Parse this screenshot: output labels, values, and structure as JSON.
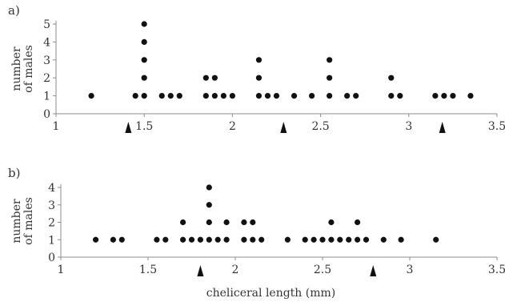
{
  "chart_data": [
    {
      "type": "scatter",
      "panel_label": "a)",
      "ylabel": [
        "number",
        "of males"
      ],
      "xlabel": "",
      "xlim": [
        1,
        3.5
      ],
      "ylim": [
        0,
        5
      ],
      "x_ticks": [
        "1",
        "1.5",
        "2",
        "2.5",
        "3",
        "3.5"
      ],
      "y_ticks": [
        "0",
        "1",
        "2",
        "3",
        "4",
        "5"
      ],
      "grid": false,
      "points": [
        {
          "x": 1.2,
          "y": 1
        },
        {
          "x": 1.45,
          "y": 1
        },
        {
          "x": 1.5,
          "y": 1
        },
        {
          "x": 1.5,
          "y": 2
        },
        {
          "x": 1.5,
          "y": 3
        },
        {
          "x": 1.5,
          "y": 4
        },
        {
          "x": 1.5,
          "y": 5
        },
        {
          "x": 1.6,
          "y": 1
        },
        {
          "x": 1.65,
          "y": 1
        },
        {
          "x": 1.7,
          "y": 1
        },
        {
          "x": 1.85,
          "y": 1
        },
        {
          "x": 1.85,
          "y": 2
        },
        {
          "x": 1.9,
          "y": 1
        },
        {
          "x": 1.9,
          "y": 2
        },
        {
          "x": 1.95,
          "y": 1
        },
        {
          "x": 2.0,
          "y": 1
        },
        {
          "x": 2.15,
          "y": 1
        },
        {
          "x": 2.15,
          "y": 2
        },
        {
          "x": 2.15,
          "y": 3
        },
        {
          "x": 2.2,
          "y": 1
        },
        {
          "x": 2.25,
          "y": 1
        },
        {
          "x": 2.35,
          "y": 1
        },
        {
          "x": 2.45,
          "y": 1
        },
        {
          "x": 2.55,
          "y": 1
        },
        {
          "x": 2.55,
          "y": 2
        },
        {
          "x": 2.55,
          "y": 3
        },
        {
          "x": 2.65,
          "y": 1
        },
        {
          "x": 2.7,
          "y": 1
        },
        {
          "x": 2.9,
          "y": 1
        },
        {
          "x": 2.9,
          "y": 2
        },
        {
          "x": 2.95,
          "y": 1
        },
        {
          "x": 3.15,
          "y": 1
        },
        {
          "x": 3.2,
          "y": 1
        },
        {
          "x": 3.25,
          "y": 1
        },
        {
          "x": 3.35,
          "y": 1
        }
      ],
      "markers": [
        1.41,
        2.29,
        3.19
      ]
    },
    {
      "type": "scatter",
      "panel_label": "b)",
      "ylabel": [
        "number",
        "of males"
      ],
      "xlabel": "cheliceral length (mm)",
      "xlim": [
        1,
        3.5
      ],
      "ylim": [
        0,
        4
      ],
      "x_ticks": [
        "1",
        "1.5",
        "2",
        "2.5",
        "3",
        "3.5"
      ],
      "y_ticks": [
        "0",
        "1",
        "2",
        "3",
        "4"
      ],
      "grid": false,
      "points": [
        {
          "x": 1.2,
          "y": 1
        },
        {
          "x": 1.3,
          "y": 1
        },
        {
          "x": 1.35,
          "y": 1
        },
        {
          "x": 1.55,
          "y": 1
        },
        {
          "x": 1.6,
          "y": 1
        },
        {
          "x": 1.7,
          "y": 1
        },
        {
          "x": 1.7,
          "y": 2
        },
        {
          "x": 1.75,
          "y": 1
        },
        {
          "x": 1.8,
          "y": 1
        },
        {
          "x": 1.85,
          "y": 1
        },
        {
          "x": 1.85,
          "y": 2
        },
        {
          "x": 1.85,
          "y": 3
        },
        {
          "x": 1.85,
          "y": 4
        },
        {
          "x": 1.9,
          "y": 1
        },
        {
          "x": 1.95,
          "y": 1
        },
        {
          "x": 1.95,
          "y": 2
        },
        {
          "x": 2.05,
          "y": 1
        },
        {
          "x": 2.05,
          "y": 2
        },
        {
          "x": 2.1,
          "y": 1
        },
        {
          "x": 2.1,
          "y": 2
        },
        {
          "x": 2.15,
          "y": 1
        },
        {
          "x": 2.3,
          "y": 1
        },
        {
          "x": 2.4,
          "y": 1
        },
        {
          "x": 2.45,
          "y": 1
        },
        {
          "x": 2.5,
          "y": 1
        },
        {
          "x": 2.55,
          "y": 1
        },
        {
          "x": 2.55,
          "y": 2
        },
        {
          "x": 2.6,
          "y": 1
        },
        {
          "x": 2.65,
          "y": 1
        },
        {
          "x": 2.7,
          "y": 1
        },
        {
          "x": 2.7,
          "y": 2
        },
        {
          "x": 2.75,
          "y": 1
        },
        {
          "x": 2.85,
          "y": 1
        },
        {
          "x": 2.95,
          "y": 1
        },
        {
          "x": 3.15,
          "y": 1
        }
      ],
      "markers": [
        1.8,
        2.79
      ]
    }
  ]
}
